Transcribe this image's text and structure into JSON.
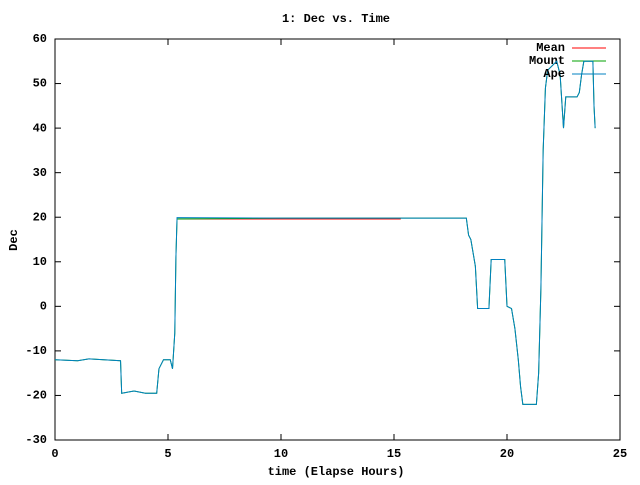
{
  "chart_data": {
    "type": "line",
    "title": "1: Dec vs. Time",
    "xlabel": "time (Elapse Hours)",
    "ylabel": "Dec",
    "xlim": [
      0,
      25
    ],
    "ylim": [
      -30,
      60
    ],
    "xticks": [
      0,
      5,
      10,
      15,
      20,
      25
    ],
    "yticks": [
      -30,
      -20,
      -10,
      0,
      10,
      20,
      30,
      40,
      50,
      60
    ],
    "legend": "upper right",
    "series": [
      {
        "name": "Mean",
        "color": "#ff0000",
        "x": [
          5.4,
          15.3
        ],
        "values": [
          19.6,
          19.6
        ]
      },
      {
        "name": "Mount",
        "color": "#00a000",
        "x": [
          0,
          1,
          1.5,
          2.9,
          2.95,
          3.5,
          4.0,
          4.5,
          4.6,
          4.8,
          5.1,
          5.2,
          5.3,
          5.35,
          5.4,
          10,
          15,
          18.2,
          18.3,
          18.4,
          18.5,
          18.6,
          18.7,
          19.2,
          19.3,
          19.9,
          20.0,
          20.2,
          20.35,
          20.5,
          20.6,
          20.7,
          21.3,
          21.4,
          21.5,
          21.6,
          21.7,
          21.8,
          22.2,
          22.35,
          22.5,
          22.6,
          23.1,
          23.2,
          23.3,
          23.4,
          23.8,
          23.85,
          23.9
        ],
        "values": [
          -12,
          -12.2,
          -11.8,
          -12.2,
          -19.5,
          -19,
          -19.5,
          -19.5,
          -14,
          -12,
          -12,
          -14,
          -6,
          11,
          19.6,
          19.8,
          19.8,
          19.8,
          16,
          15,
          12,
          9,
          -0.5,
          -0.5,
          10.5,
          10.5,
          0,
          -0.5,
          -5,
          -12,
          -18,
          -22,
          -22,
          -15,
          4,
          35,
          49,
          53,
          55,
          52,
          40,
          47,
          47,
          48,
          52,
          55,
          55,
          45,
          40
        ]
      },
      {
        "name": "Ape",
        "color": "#0080c0",
        "x": [
          0,
          1,
          1.5,
          2.9,
          2.95,
          3.5,
          4.0,
          4.5,
          4.6,
          4.8,
          5.1,
          5.2,
          5.3,
          5.35,
          5.4,
          10,
          15,
          18.2,
          18.3,
          18.4,
          18.5,
          18.6,
          18.7,
          19.2,
          19.3,
          19.9,
          20.0,
          20.2,
          20.35,
          20.5,
          20.6,
          20.7,
          21.3,
          21.4,
          21.5,
          21.6,
          21.7,
          21.8,
          22.2,
          22.35,
          22.5,
          22.6,
          23.1,
          23.2,
          23.3,
          23.4,
          23.8,
          23.85,
          23.9
        ],
        "values": [
          -12,
          -12.2,
          -11.8,
          -12.2,
          -19.5,
          -19,
          -19.5,
          -19.5,
          -14,
          -12,
          -12,
          -14,
          -6,
          11,
          19.9,
          19.8,
          19.8,
          19.8,
          16,
          15,
          12,
          9,
          -0.5,
          -0.5,
          10.5,
          10.5,
          0,
          -0.5,
          -5,
          -12,
          -18,
          -22,
          -22,
          -15,
          4,
          35,
          49,
          53,
          55,
          52,
          40,
          47,
          47,
          48,
          52,
          55,
          55,
          45,
          40
        ]
      }
    ]
  }
}
